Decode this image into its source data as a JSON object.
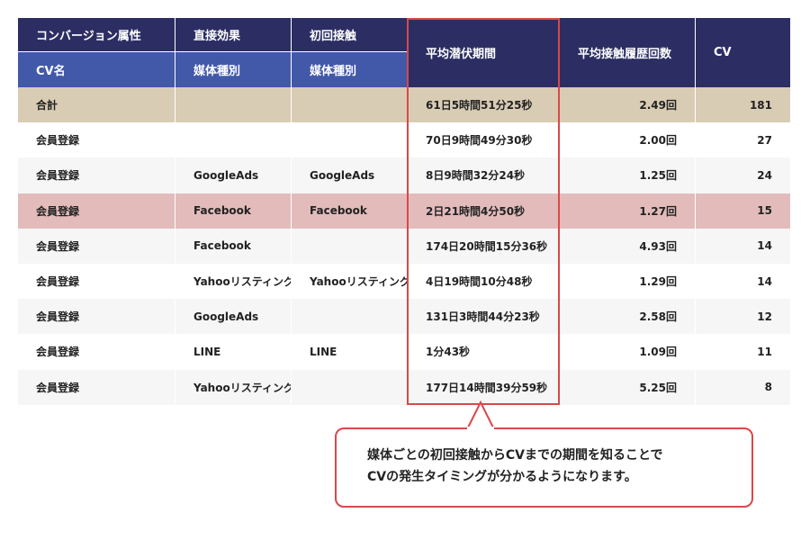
{
  "table": {
    "header_top": [
      "コンバージョン属性",
      "直接効果",
      "初回接触"
    ],
    "header_sub": [
      "CV名",
      "媒体種別",
      "媒体種別"
    ],
    "header_span": [
      "平均潜伏期間",
      "平均接触履歴回数",
      "CV"
    ],
    "rows": [
      [
        "合計",
        null,
        null,
        "61日5時間51分25秒",
        "2.49回",
        "181"
      ],
      [
        "会員登録",
        null,
        null,
        "70日9時間49分30秒",
        "2.00回",
        "27"
      ],
      [
        "会員登録",
        "GoogleAds",
        "GoogleAds",
        "8日9時間32分24秒",
        "1.25回",
        "24"
      ],
      [
        "会員登録",
        "Facebook",
        "Facebook",
        "2日21時間4分50秒",
        "1.27回",
        "15"
      ],
      [
        "会員登録",
        "Facebook",
        null,
        "174日20時間15分36秒",
        "4.93回",
        "14"
      ],
      [
        "会員登録",
        "Yahooリスティング",
        "Yahooリスティング",
        "4日19時間10分48秒",
        "1.29回",
        "14"
      ],
      [
        "会員登録",
        "GoogleAds",
        null,
        "131日3時間44分23秒",
        "2.58回",
        "12"
      ],
      [
        "会員登録",
        "LINE",
        "LINE",
        "1分43秒",
        "1.09回",
        "11"
      ],
      [
        "会員登録",
        "Yahooリスティング",
        null,
        "177日14時間39分59秒",
        "5.25回",
        "8"
      ]
    ]
  },
  "callout": {
    "lines": [
      "媒体ごとの初回接触からCVまでの期間を知ることで",
      "CVの発生タイミングが分かるようになります。"
    ]
  }
}
